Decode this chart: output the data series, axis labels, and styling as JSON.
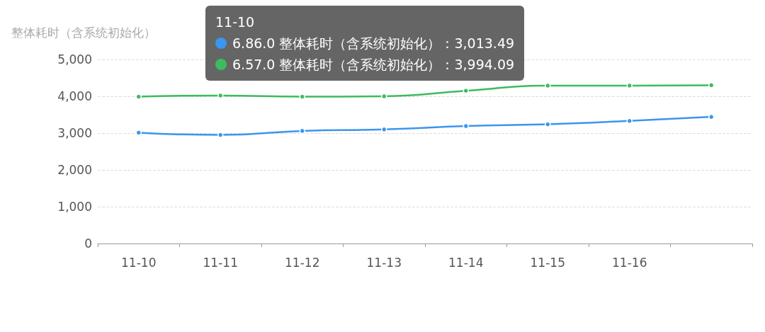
{
  "chart_data": {
    "type": "line",
    "ylabel": "整体耗时（含系统初始化）",
    "categories": [
      "11-10",
      "11-11",
      "11-12",
      "11-13",
      "11-14",
      "11-15",
      "11-16",
      null
    ],
    "series": [
      {
        "color": "#3a96ee",
        "values": [
          3010,
          2950,
          3060,
          3100,
          3190,
          3240,
          3330,
          3440
        ]
      },
      {
        "color": "#3dbb5e",
        "values": [
          3990,
          4020,
          3990,
          4000,
          4150,
          4290,
          4290,
          4300
        ]
      }
    ],
    "annotations": [
      "11-10",
      "6.86.0 整体耗时（含系统初始化）：3,013.49",
      "6.57.0 整体耗时（含系统初始化）：3,994.09"
    ],
    "ylim": [
      0,
      5000
    ],
    "yticks": [
      0,
      {
        "value": 1000,
        "label": "1,000"
      },
      {
        "value": 2000,
        "label": "2,000"
      },
      {
        "value": 3000,
        "label": "3,000"
      },
      {
        "value": 4000,
        "label": "4,000"
      },
      {
        "value": 5000,
        "label": "5,000"
      }
    ],
    "grid": "y",
    "marker": "circle",
    "line_style": "solid"
  }
}
